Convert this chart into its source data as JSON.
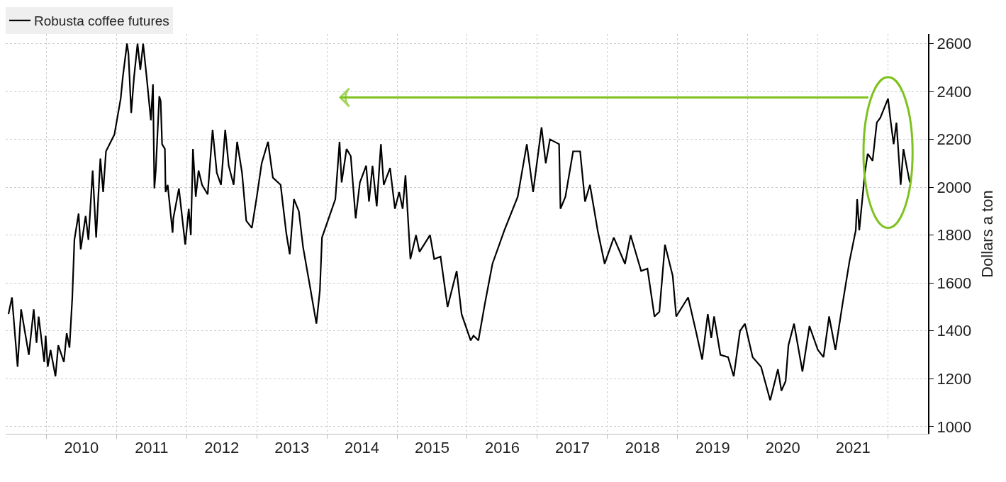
{
  "chart_data": {
    "type": "line",
    "ylabel": "Dollars a ton",
    "xlim": [
      2009.42,
      2022.57
    ],
    "ylim": [
      970,
      2640
    ],
    "xticks": [
      {
        "value": 2010,
        "label": null
      },
      {
        "value": 2011,
        "label": null
      },
      {
        "value": 2012,
        "label": null
      },
      {
        "value": 2013,
        "label": null
      },
      {
        "value": 2014,
        "label": null
      },
      {
        "value": 2015,
        "label": null
      },
      {
        "value": 2016,
        "label": null
      },
      {
        "value": 2017,
        "label": null
      },
      {
        "value": 2018,
        "label": null
      },
      {
        "value": 2019,
        "label": null
      },
      {
        "value": 2020,
        "label": null
      },
      {
        "value": 2021,
        "label": null
      },
      {
        "value": 2022,
        "label": null
      },
      {
        "value": 2010.5,
        "label": "2010"
      },
      {
        "value": 2011.5,
        "label": "2011"
      },
      {
        "value": 2012.5,
        "label": "2012"
      },
      {
        "value": 2013.5,
        "label": "2013"
      },
      {
        "value": 2014.5,
        "label": "2014"
      },
      {
        "value": 2015.5,
        "label": "2015"
      },
      {
        "value": 2016.5,
        "label": "2016"
      },
      {
        "value": 2017.5,
        "label": "2017"
      },
      {
        "value": 2018.5,
        "label": "2018"
      },
      {
        "value": 2019.5,
        "label": "2019"
      },
      {
        "value": 2020.5,
        "label": "2020"
      },
      {
        "value": 2021.5,
        "label": "2021"
      }
    ],
    "yticks": [
      1000,
      1200,
      1400,
      1600,
      1800,
      2000,
      2200,
      2400,
      2600
    ],
    "grid": true,
    "legend": "top left",
    "marker": "none",
    "line_style": "solid",
    "series": [
      {
        "name": "Robusta coffee futures",
        "color": "#000000",
        "x": [
          2009.46,
          2009.51,
          2009.59,
          2009.64,
          2009.75,
          2009.82,
          2009.86,
          2009.89,
          2009.97,
          2009.99,
          2010.02,
          2010.06,
          2010.13,
          2010.17,
          2010.25,
          2010.29,
          2010.33,
          2010.37,
          2010.4,
          2010.46,
          2010.49,
          2010.56,
          2010.6,
          2010.66,
          2010.71,
          2010.77,
          2010.81,
          2010.85,
          2010.97,
          2011.06,
          2011.09,
          2011.15,
          2011.17,
          2011.21,
          2011.25,
          2011.3,
          2011.34,
          2011.38,
          2011.43,
          2011.49,
          2011.52,
          2011.54,
          2011.56,
          2011.61,
          2011.63,
          2011.65,
          2011.69,
          2011.7,
          2011.73,
          2011.8,
          2011.81,
          2011.89,
          2011.98,
          2012.03,
          2012.06,
          2012.09,
          2012.13,
          2012.17,
          2012.22,
          2012.3,
          2012.37,
          2012.43,
          2012.49,
          2012.55,
          2012.6,
          2012.67,
          2012.72,
          2012.79,
          2012.85,
          2012.93,
          2013.0,
          2013.07,
          2013.16,
          2013.23,
          2013.34,
          2013.42,
          2013.47,
          2013.53,
          2013.6,
          2013.66,
          2013.75,
          2013.85,
          2013.9,
          2013.93,
          2014.12,
          2014.18,
          2014.21,
          2014.28,
          2014.34,
          2014.41,
          2014.47,
          2014.56,
          2014.6,
          2014.65,
          2014.71,
          2014.77,
          2014.81,
          2014.9,
          2014.97,
          2015.03,
          2015.08,
          2015.12,
          2015.19,
          2015.27,
          2015.32,
          2015.47,
          2015.53,
          2015.62,
          2015.72,
          2015.85,
          2015.92,
          2016.05,
          2016.09,
          2016.16,
          2016.25,
          2016.36,
          2016.53,
          2016.72,
          2016.85,
          2016.94,
          2017.06,
          2017.12,
          2017.18,
          2017.31,
          2017.33,
          2017.4,
          2017.51,
          2017.61,
          2017.68,
          2017.75,
          2017.86,
          2017.96,
          2018.09,
          2018.25,
          2018.33,
          2018.48,
          2018.57,
          2018.67,
          2018.74,
          2018.82,
          2018.93,
          2018.98,
          2019.15,
          2019.26,
          2019.35,
          2019.43,
          2019.48,
          2019.52,
          2019.61,
          2019.72,
          2019.8,
          2019.89,
          2019.96,
          2020.07,
          2020.19,
          2020.32,
          2020.43,
          2020.48,
          2020.54,
          2020.58,
          2020.66,
          2020.78,
          2020.88,
          2021.0,
          2021.08,
          2021.16,
          2021.25,
          2021.35,
          2021.45,
          2021.54,
          2021.56,
          2021.59,
          2021.67,
          2021.71,
          2021.78,
          2021.84,
          2021.89,
          2022.0,
          2022.04,
          2022.08,
          2022.12,
          2022.18,
          2022.22,
          2022.27,
          2022.31
        ],
        "values": [
          1470,
          1540,
          1250,
          1490,
          1300,
          1490,
          1350,
          1460,
          1270,
          1380,
          1250,
          1320,
          1210,
          1340,
          1270,
          1390,
          1330,
          1540,
          1780,
          1890,
          1740,
          1880,
          1780,
          2070,
          1790,
          2120,
          1980,
          2150,
          2220,
          2370,
          2460,
          2600,
          2560,
          2310,
          2460,
          2600,
          2490,
          2600,
          2460,
          2280,
          2430,
          1995,
          2070,
          2380,
          2360,
          2180,
          2160,
          1980,
          2010,
          1810,
          1870,
          1995,
          1760,
          1910,
          1800,
          2160,
          1960,
          2070,
          2010,
          1970,
          2240,
          2060,
          2010,
          2240,
          2090,
          2010,
          2190,
          2060,
          1860,
          1830,
          1960,
          2100,
          2190,
          2040,
          2010,
          1810,
          1720,
          1950,
          1900,
          1750,
          1600,
          1430,
          1570,
          1790,
          1950,
          2190,
          2020,
          2160,
          2130,
          1870,
          2020,
          2090,
          1940,
          2090,
          1920,
          2180,
          2010,
          2080,
          1910,
          1980,
          1910,
          2050,
          1700,
          1800,
          1730,
          1800,
          1700,
          1710,
          1500,
          1650,
          1470,
          1360,
          1380,
          1360,
          1510,
          1680,
          1820,
          1960,
          2180,
          1980,
          2250,
          2100,
          2200,
          2180,
          1910,
          1960,
          2150,
          2150,
          1940,
          2010,
          1820,
          1680,
          1790,
          1680,
          1800,
          1650,
          1660,
          1460,
          1480,
          1760,
          1630,
          1460,
          1540,
          1400,
          1280,
          1470,
          1370,
          1460,
          1300,
          1290,
          1210,
          1400,
          1430,
          1290,
          1250,
          1110,
          1240,
          1150,
          1190,
          1340,
          1430,
          1230,
          1420,
          1320,
          1290,
          1460,
          1320,
          1510,
          1690,
          1820,
          1950,
          1820,
          2060,
          2140,
          2110,
          2270,
          2290,
          2370,
          2270,
          2180,
          2270,
          2010,
          2160,
          2080,
          2020
        ]
      },
      {
        "color": "#7dc21e",
        "type": "line",
        "x": [
          2021.72,
          2014.19
        ],
        "values": [
          2375,
          2375
        ]
      }
    ]
  }
}
